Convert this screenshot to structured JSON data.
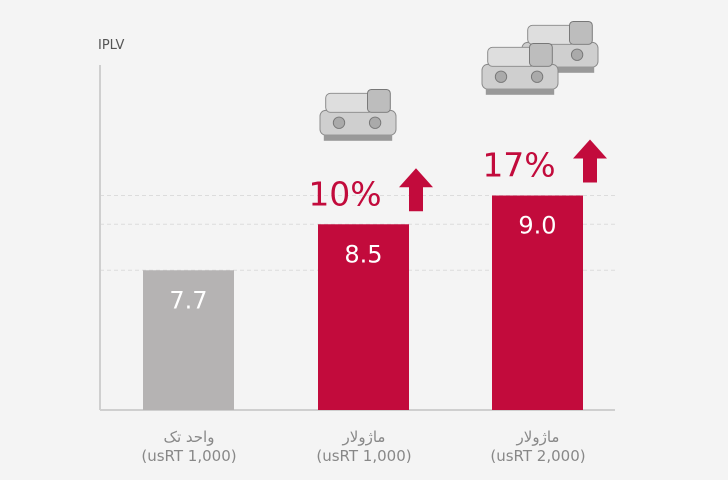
{
  "chart_data": {
    "type": "bar",
    "title": "",
    "ylabel": "IPLV",
    "xlabel": "",
    "ylim": [
      5.27,
      11.27
    ],
    "grid": true,
    "categories": [
      {
        "name": "واحد تک",
        "capacity": "(usRT 1,000)"
      },
      {
        "name": "ماژولار",
        "capacity": "(usRT 1,000)"
      },
      {
        "name": "ماژولار",
        "capacity": "(usRT 2,000)"
      }
    ],
    "values": [
      7.7,
      8.5,
      9.0
    ],
    "value_labels": [
      "7.7",
      "8.5",
      "9.0"
    ],
    "annotations": [
      "",
      "10%",
      "17%"
    ],
    "colors": [
      "#b5b3b3",
      "#c20b3c",
      "#c20b3c"
    ],
    "accent": "#c20b3c"
  }
}
